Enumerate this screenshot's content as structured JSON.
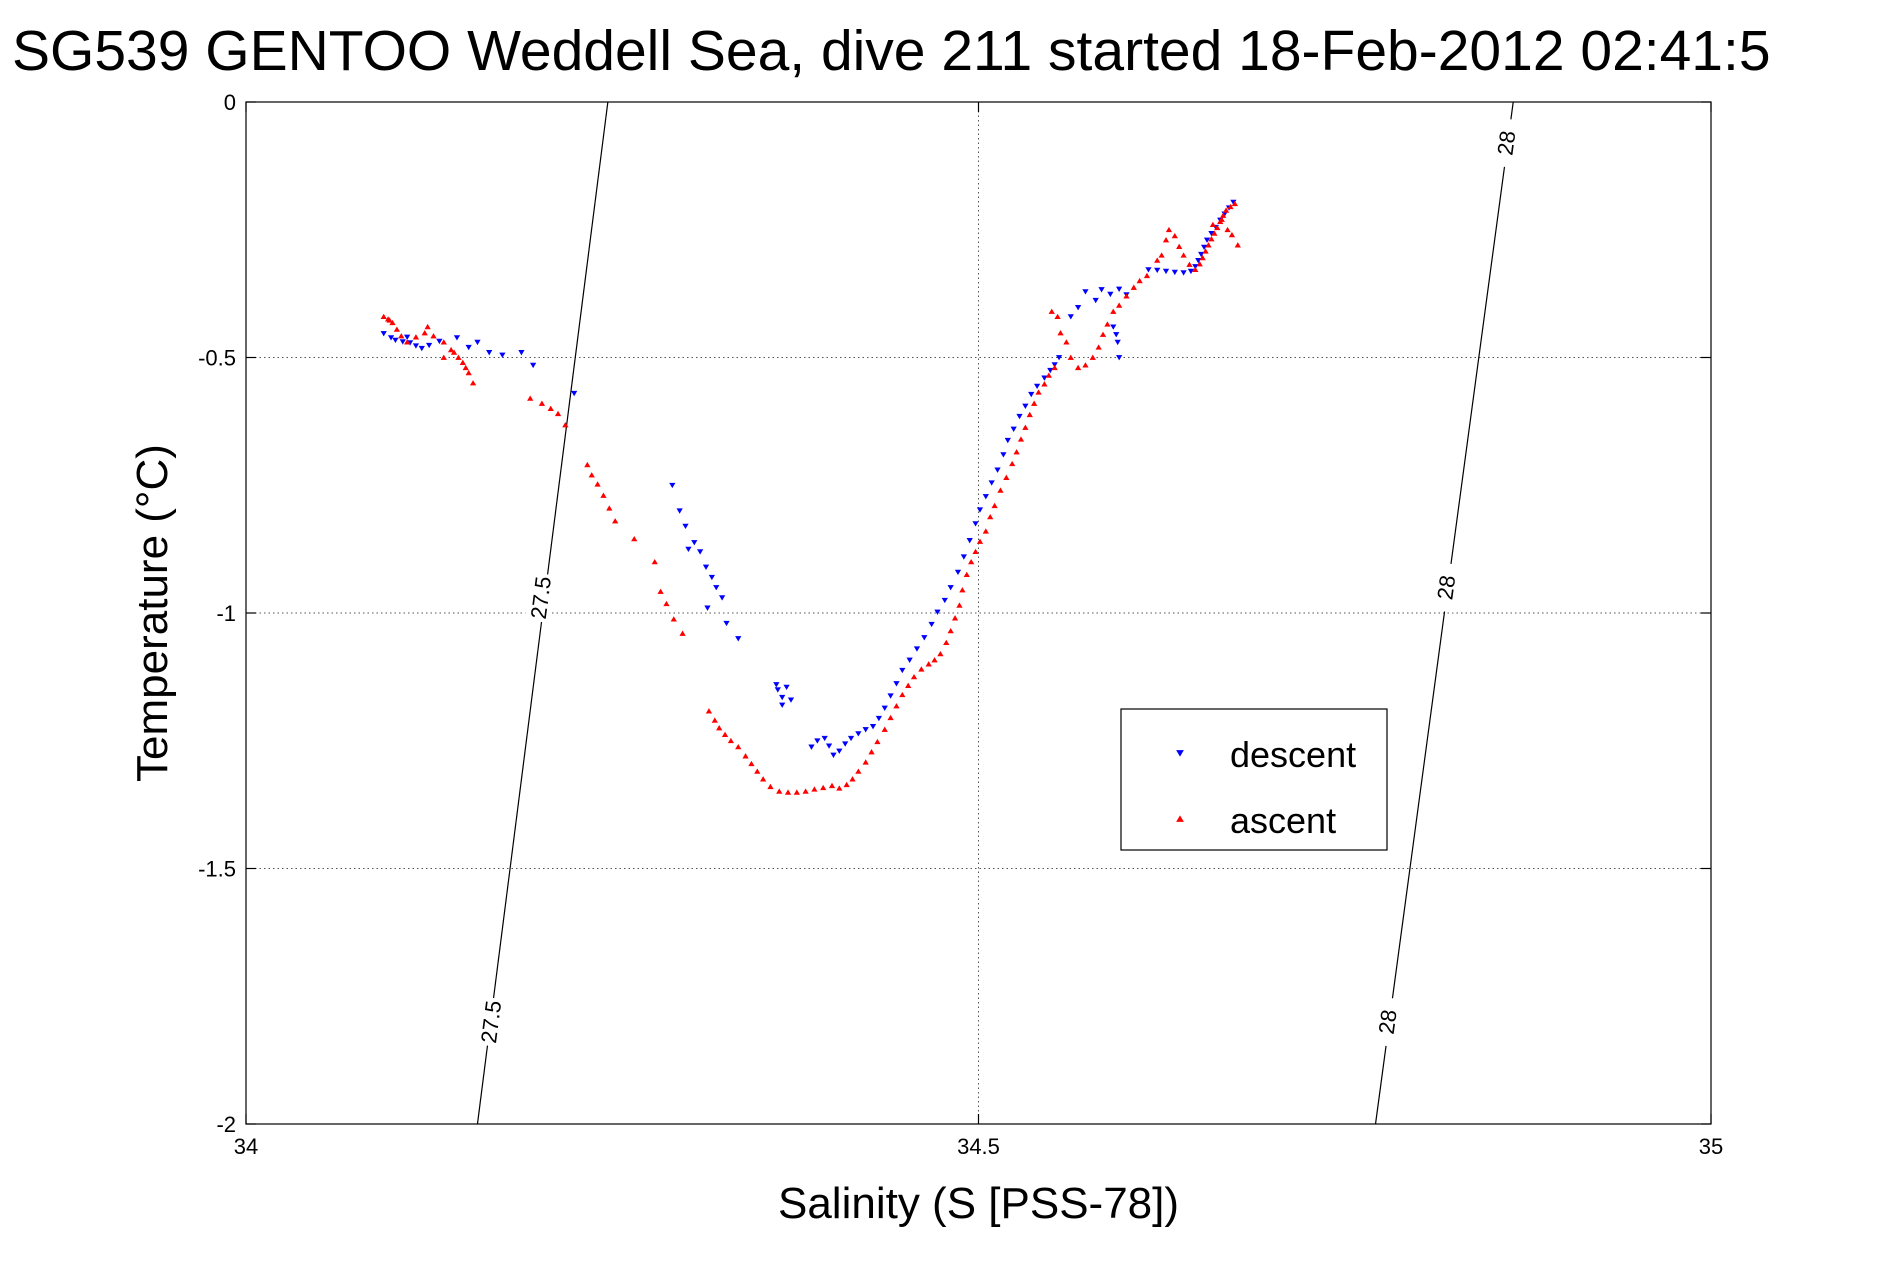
{
  "chart_data": {
    "type": "scatter",
    "title": "SG539 GENTOO Weddell Sea, dive 211 started 18-Feb-2012 02:41:5",
    "xlabel": "Salinity (S [PSS-78])",
    "ylabel": "Temperature (°C)",
    "xlim": [
      34,
      35
    ],
    "ylim": [
      -2,
      0
    ],
    "xticks": [
      34,
      34.5,
      35
    ],
    "xtick_labels": [
      "34",
      "34.5",
      "35"
    ],
    "yticks": [
      0,
      -0.5,
      -1,
      -1.5,
      -2
    ],
    "ytick_labels": [
      "0",
      "-0.5",
      "-1",
      "-1.5",
      "-2"
    ],
    "grid": true,
    "legend_position": "center-right",
    "colors": {
      "descent": "#0000ff",
      "ascent": "#ff0000"
    },
    "contours": [
      {
        "name": "27.5",
        "points": [
          [
            34.158,
            -2.0
          ],
          [
            34.247,
            0.0
          ]
        ],
        "labels": [
          {
            "text": "27.5",
            "x": 34.167,
            "y": -1.8
          },
          {
            "text": "27.5",
            "x": 34.201,
            "y": -0.97
          }
        ]
      },
      {
        "name": "28",
        "points": [
          [
            34.771,
            -2.0
          ],
          [
            34.865,
            0.0
          ]
        ],
        "labels": [
          {
            "text": "28",
            "x": 34.779,
            "y": -1.8
          },
          {
            "text": "28",
            "x": 34.819,
            "y": -0.95
          },
          {
            "text": "28",
            "x": 34.86,
            "y": -0.08
          }
        ]
      }
    ],
    "series": [
      {
        "name": "descent",
        "marker": "triangle-down",
        "points": [
          [
            34.674,
            -0.196
          ],
          [
            34.671,
            -0.207
          ],
          [
            34.668,
            -0.219
          ],
          [
            34.665,
            -0.231
          ],
          [
            34.662,
            -0.245
          ],
          [
            34.659,
            -0.257
          ],
          [
            34.656,
            -0.27
          ],
          [
            34.654,
            -0.284
          ],
          [
            34.652,
            -0.298
          ],
          [
            34.65,
            -0.31
          ],
          [
            34.648,
            -0.322
          ],
          [
            34.645,
            -0.331
          ],
          [
            34.64,
            -0.334
          ],
          [
            34.634,
            -0.333
          ],
          [
            34.628,
            -0.331
          ],
          [
            34.622,
            -0.329
          ],
          [
            34.616,
            -0.328
          ],
          [
            34.601,
            -0.377
          ],
          [
            34.596,
            -0.366
          ],
          [
            34.59,
            -0.376
          ],
          [
            34.584,
            -0.367
          ],
          [
            34.58,
            -0.388
          ],
          [
            34.573,
            -0.371
          ],
          [
            34.568,
            -0.402
          ],
          [
            34.563,
            -0.42
          ],
          [
            34.592,
            -0.44
          ],
          [
            34.594,
            -0.455
          ],
          [
            34.595,
            -0.47
          ],
          [
            34.596,
            -0.5
          ],
          [
            34.555,
            -0.5
          ],
          [
            34.552,
            -0.514
          ],
          [
            34.549,
            -0.525
          ],
          [
            34.545,
            -0.54
          ],
          [
            34.54,
            -0.556
          ],
          [
            34.536,
            -0.572
          ],
          [
            34.532,
            -0.595
          ],
          [
            34.528,
            -0.615
          ],
          [
            34.524,
            -0.64
          ],
          [
            34.52,
            -0.662
          ],
          [
            34.517,
            -0.69
          ],
          [
            34.513,
            -0.72
          ],
          [
            34.509,
            -0.745
          ],
          [
            34.505,
            -0.772
          ],
          [
            34.501,
            -0.798
          ],
          [
            34.498,
            -0.825
          ],
          [
            34.494,
            -0.858
          ],
          [
            34.49,
            -0.89
          ],
          [
            34.486,
            -0.92
          ],
          [
            34.481,
            -0.95
          ],
          [
            34.477,
            -0.975
          ],
          [
            34.472,
            -0.998
          ],
          [
            34.468,
            -1.022
          ],
          [
            34.463,
            -1.048
          ],
          [
            34.458,
            -1.07
          ],
          [
            34.453,
            -1.092
          ],
          [
            34.448,
            -1.112
          ],
          [
            34.444,
            -1.138
          ],
          [
            34.44,
            -1.162
          ],
          [
            34.436,
            -1.186
          ],
          [
            34.432,
            -1.206
          ],
          [
            34.428,
            -1.222
          ],
          [
            34.423,
            -1.228
          ],
          [
            34.418,
            -1.236
          ],
          [
            34.413,
            -1.245
          ],
          [
            34.409,
            -1.256
          ],
          [
            34.405,
            -1.27
          ],
          [
            34.401,
            -1.278
          ],
          [
            34.398,
            -1.26
          ],
          [
            34.395,
            -1.245
          ],
          [
            34.39,
            -1.25
          ],
          [
            34.386,
            -1.262
          ],
          [
            34.363,
            -1.15
          ],
          [
            34.366,
            -1.165
          ],
          [
            34.369,
            -1.145
          ],
          [
            34.372,
            -1.17
          ],
          [
            34.366,
            -1.18
          ],
          [
            34.362,
            -1.14
          ],
          [
            34.336,
            -1.05
          ],
          [
            34.328,
            -1.02
          ],
          [
            34.325,
            -0.97
          ],
          [
            34.321,
            -0.95
          ],
          [
            34.318,
            -0.93
          ],
          [
            34.314,
            -0.91
          ],
          [
            34.31,
            -0.88
          ],
          [
            34.306,
            -0.862
          ],
          [
            34.302,
            -0.875
          ],
          [
            34.3,
            -0.83
          ],
          [
            34.296,
            -0.8
          ],
          [
            34.291,
            -0.75
          ],
          [
            34.315,
            -0.99
          ],
          [
            34.224,
            -0.57
          ],
          [
            34.196,
            -0.515
          ],
          [
            34.188,
            -0.49
          ],
          [
            34.175,
            -0.495
          ],
          [
            34.166,
            -0.49
          ],
          [
            34.158,
            -0.47
          ],
          [
            34.152,
            -0.48
          ],
          [
            34.144,
            -0.461
          ],
          [
            34.132,
            -0.468
          ],
          [
            34.125,
            -0.476
          ],
          [
            34.12,
            -0.482
          ],
          [
            34.116,
            -0.477
          ],
          [
            34.112,
            -0.471
          ],
          [
            34.107,
            -0.469
          ],
          [
            34.102,
            -0.466
          ],
          [
            34.099,
            -0.461
          ],
          [
            34.094,
            -0.453
          ],
          [
            34.11,
            -0.46
          ]
        ]
      },
      {
        "name": "ascent",
        "marker": "triangle-up",
        "points": [
          [
            34.675,
            -0.199
          ],
          [
            34.672,
            -0.205
          ],
          [
            34.669,
            -0.212
          ],
          [
            34.667,
            -0.222
          ],
          [
            34.665,
            -0.234
          ],
          [
            34.663,
            -0.246
          ],
          [
            34.661,
            -0.257
          ],
          [
            34.659,
            -0.268
          ],
          [
            34.657,
            -0.28
          ],
          [
            34.655,
            -0.292
          ],
          [
            34.653,
            -0.305
          ],
          [
            34.651,
            -0.317
          ],
          [
            34.648,
            -0.328
          ],
          [
            34.66,
            -0.24
          ],
          [
            34.666,
            -0.23
          ],
          [
            34.67,
            -0.25
          ],
          [
            34.673,
            -0.26
          ],
          [
            34.677,
            -0.28
          ],
          [
            34.644,
            -0.318
          ],
          [
            34.64,
            -0.3
          ],
          [
            34.637,
            -0.283
          ],
          [
            34.634,
            -0.262
          ],
          [
            34.63,
            -0.25
          ],
          [
            34.628,
            -0.27
          ],
          [
            34.625,
            -0.3
          ],
          [
            34.622,
            -0.31
          ],
          [
            34.615,
            -0.34
          ],
          [
            34.61,
            -0.35
          ],
          [
            34.606,
            -0.363
          ],
          [
            34.601,
            -0.38
          ],
          [
            34.596,
            -0.398
          ],
          [
            34.592,
            -0.41
          ],
          [
            34.588,
            -0.435
          ],
          [
            34.585,
            -0.455
          ],
          [
            34.582,
            -0.48
          ],
          [
            34.578,
            -0.5
          ],
          [
            34.573,
            -0.515
          ],
          [
            34.568,
            -0.52
          ],
          [
            34.563,
            -0.5
          ],
          [
            34.56,
            -0.47
          ],
          [
            34.556,
            -0.452
          ],
          [
            34.554,
            -0.42
          ],
          [
            34.55,
            -0.41
          ],
          [
            34.552,
            -0.52
          ],
          [
            34.548,
            -0.535
          ],
          [
            34.545,
            -0.552
          ],
          [
            34.541,
            -0.568
          ],
          [
            34.538,
            -0.59
          ],
          [
            34.535,
            -0.612
          ],
          [
            34.532,
            -0.637
          ],
          [
            34.529,
            -0.66
          ],
          [
            34.526,
            -0.685
          ],
          [
            34.523,
            -0.708
          ],
          [
            34.519,
            -0.735
          ],
          [
            34.515,
            -0.76
          ],
          [
            34.511,
            -0.79
          ],
          [
            34.508,
            -0.812
          ],
          [
            34.505,
            -0.84
          ],
          [
            34.501,
            -0.86
          ],
          [
            34.498,
            -0.88
          ],
          [
            34.495,
            -0.9
          ],
          [
            34.492,
            -0.925
          ],
          [
            34.489,
            -0.955
          ],
          [
            34.487,
            -0.985
          ],
          [
            34.484,
            -1.01
          ],
          [
            34.481,
            -1.035
          ],
          [
            34.478,
            -1.058
          ],
          [
            34.474,
            -1.08
          ],
          [
            34.47,
            -1.092
          ],
          [
            34.466,
            -1.1
          ],
          [
            34.461,
            -1.11
          ],
          [
            34.456,
            -1.125
          ],
          [
            34.452,
            -1.142
          ],
          [
            34.448,
            -1.16
          ],
          [
            34.444,
            -1.182
          ],
          [
            34.44,
            -1.205
          ],
          [
            34.436,
            -1.228
          ],
          [
            34.431,
            -1.252
          ],
          [
            34.427,
            -1.272
          ],
          [
            34.423,
            -1.292
          ],
          [
            34.418,
            -1.31
          ],
          [
            34.414,
            -1.325
          ],
          [
            34.41,
            -1.336
          ],
          [
            34.405,
            -1.343
          ],
          [
            34.4,
            -1.338
          ],
          [
            34.394,
            -1.342
          ],
          [
            34.388,
            -1.345
          ],
          [
            34.382,
            -1.349
          ],
          [
            34.376,
            -1.351
          ],
          [
            34.37,
            -1.351
          ],
          [
            34.364,
            -1.349
          ],
          [
            34.358,
            -1.34
          ],
          [
            34.353,
            -1.325
          ],
          [
            34.349,
            -1.31
          ],
          [
            34.345,
            -1.295
          ],
          [
            34.341,
            -1.28
          ],
          [
            34.336,
            -1.262
          ],
          [
            34.331,
            -1.25
          ],
          [
            34.327,
            -1.238
          ],
          [
            34.323,
            -1.225
          ],
          [
            34.32,
            -1.21
          ],
          [
            34.316,
            -1.192
          ],
          [
            34.298,
            -1.04
          ],
          [
            34.292,
            -1.012
          ],
          [
            34.287,
            -0.982
          ],
          [
            34.283,
            -0.958
          ],
          [
            34.279,
            -0.9
          ],
          [
            34.265,
            -0.855
          ],
          [
            34.252,
            -0.82
          ],
          [
            34.248,
            -0.795
          ],
          [
            34.244,
            -0.77
          ],
          [
            34.24,
            -0.748
          ],
          [
            34.236,
            -0.73
          ],
          [
            34.233,
            -0.71
          ],
          [
            34.218,
            -0.632
          ],
          [
            34.213,
            -0.61
          ],
          [
            34.208,
            -0.6
          ],
          [
            34.202,
            -0.59
          ],
          [
            34.194,
            -0.58
          ],
          [
            34.155,
            -0.55
          ],
          [
            34.15,
            -0.52
          ],
          [
            34.145,
            -0.5
          ],
          [
            34.14,
            -0.485
          ],
          [
            34.135,
            -0.47
          ],
          [
            34.128,
            -0.458
          ],
          [
            34.122,
            -0.452
          ],
          [
            34.116,
            -0.46
          ],
          [
            34.11,
            -0.47
          ],
          [
            34.106,
            -0.458
          ],
          [
            34.103,
            -0.445
          ],
          [
            34.1,
            -0.432
          ],
          [
            34.097,
            -0.425
          ],
          [
            34.094,
            -0.42
          ],
          [
            34.098,
            -0.427
          ],
          [
            34.148,
            -0.51
          ],
          [
            34.152,
            -0.53
          ],
          [
            34.142,
            -0.49
          ],
          [
            34.135,
            -0.5
          ],
          [
            34.124,
            -0.44
          ]
        ]
      }
    ]
  }
}
